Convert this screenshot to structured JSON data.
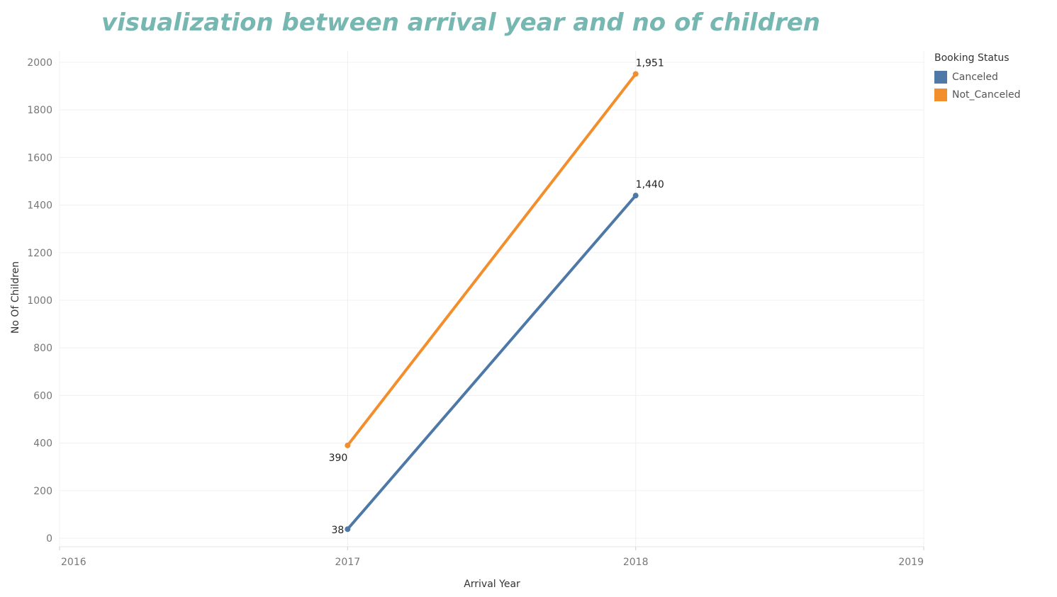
{
  "chart_data": {
    "type": "line",
    "title": "visualization between arrival year and no of children",
    "xlabel": "Arrival Year",
    "ylabel": "No Of Children",
    "x_ticks": [
      "2016",
      "2017",
      "2018",
      "2019"
    ],
    "y_ticks": [
      "0",
      "200",
      "400",
      "600",
      "800",
      "1000",
      "1200",
      "1400",
      "1600",
      "1800",
      "2000"
    ],
    "xlim": [
      2016,
      2019
    ],
    "ylim": [
      0,
      2000
    ],
    "legend_title": "Booking Status",
    "legend_position": "top-right",
    "series": [
      {
        "name": "Canceled",
        "color": "#4e79a7",
        "x": [
          2017,
          2018
        ],
        "values": [
          38,
          1440
        ],
        "labels": [
          "38",
          "1,440"
        ]
      },
      {
        "name": "Not_Canceled",
        "color": "#f28e2b",
        "x": [
          2017,
          2018
        ],
        "values": [
          390,
          1951
        ],
        "labels": [
          "390",
          "1,951"
        ]
      }
    ]
  }
}
